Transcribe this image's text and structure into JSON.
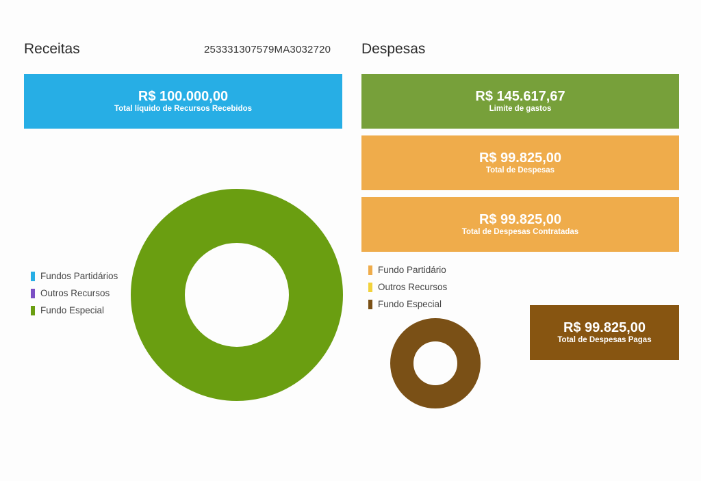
{
  "receitas": {
    "title": "Receitas",
    "card": {
      "value": "R$ 100.000,00",
      "label": "Total líquido de Recursos Recebidos",
      "color": "#27aee5"
    },
    "legend": [
      {
        "label": "Fundos Partidários",
        "color": "#27aee5"
      },
      {
        "label": "Outros Recursos",
        "color": "#7b4fc4"
      },
      {
        "label": "Fundo Especial",
        "color": "#6a9e11"
      }
    ],
    "donut": {
      "slices": [
        {
          "name": "Fundos Partidários",
          "value": 0,
          "color": "#27aee5"
        },
        {
          "name": "Outros Recursos",
          "value": 0,
          "color": "#7b4fc4"
        },
        {
          "name": "Fundo Especial",
          "value": 100000,
          "color": "#6a9e11"
        }
      ]
    }
  },
  "identifier": "253331307579MA3032720",
  "despesas": {
    "title": "Despesas",
    "cards": {
      "limite": {
        "value": "R$ 145.617,67",
        "label": "Limite de gastos",
        "color": "#77a03a"
      },
      "total": {
        "value": "R$ 99.825,00",
        "label": "Total de Despesas",
        "color": "#efac4b"
      },
      "contratadas": {
        "value": "R$ 99.825,00",
        "label": "Total de Despesas Contratadas",
        "color": "#efac4b"
      },
      "pagas": {
        "value": "R$ 99.825,00",
        "label": "Total de Despesas Pagas",
        "color": "#875511"
      }
    },
    "legend": [
      {
        "label": "Fundo Partidário",
        "color": "#efac4b"
      },
      {
        "label": "Outros Recursos",
        "color": "#f2d23c"
      },
      {
        "label": "Fundo Especial",
        "color": "#7a5016"
      }
    ],
    "donut": {
      "slices": [
        {
          "name": "Fundo Partidário",
          "value": 0,
          "color": "#efac4b"
        },
        {
          "name": "Outros Recursos",
          "value": 0,
          "color": "#f2d23c"
        },
        {
          "name": "Fundo Especial",
          "value": 99825,
          "color": "#7a5016"
        }
      ]
    }
  }
}
